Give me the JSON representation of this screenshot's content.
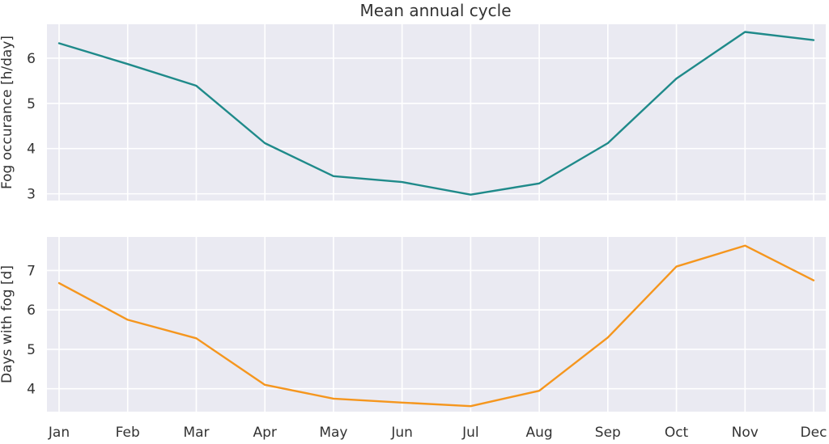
{
  "chart_data": {
    "type": "line",
    "title": "Mean annual cycle",
    "categories": [
      "Jan",
      "Feb",
      "Mar",
      "Apr",
      "May",
      "Jun",
      "Jul",
      "Aug",
      "Sep",
      "Oct",
      "Nov",
      "Dec"
    ],
    "grid": true,
    "background": "#eaeaf2",
    "grid_color": "#ffffff",
    "panels": [
      {
        "ylabel": "Fog occurance [h/day]",
        "ylim": [
          2.85,
          6.75
        ],
        "yticks": [
          3,
          4,
          5,
          6
        ],
        "series": [
          {
            "color": "#1f8a8a",
            "values": [
              6.33,
              5.87,
              5.39,
              4.12,
              3.39,
              3.26,
              2.98,
              3.23,
              4.12,
              5.55,
              6.58,
              6.4
            ]
          }
        ]
      },
      {
        "ylabel": "Days with fog [d]",
        "ylim": [
          3.42,
          7.85
        ],
        "yticks": [
          4,
          5,
          6,
          7
        ],
        "series": [
          {
            "color": "#f5961e",
            "values": [
              6.68,
              5.75,
              5.28,
              4.1,
              3.75,
              3.65,
              3.56,
              3.95,
              5.3,
              7.1,
              7.63,
              6.75
            ]
          }
        ]
      }
    ]
  }
}
